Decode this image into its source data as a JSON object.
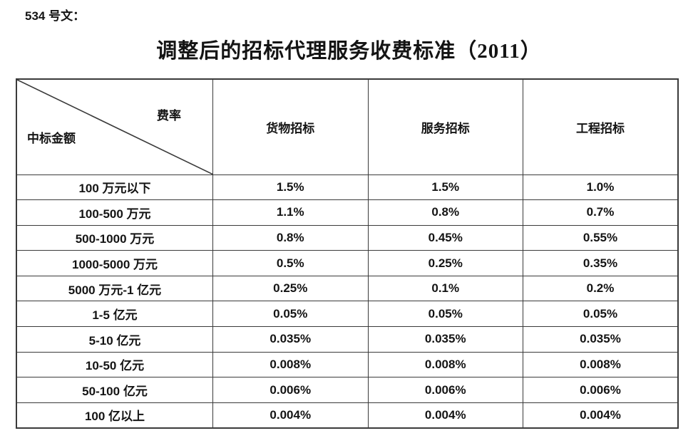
{
  "document": {
    "doc_label": "534 号文：",
    "title": "调整后的招标代理服务收费标准（2011）"
  },
  "table": {
    "corner": {
      "top_right": "费率",
      "bottom_left": "中标金额"
    },
    "columns": [
      "货物招标",
      "服务招标",
      "工程招标"
    ],
    "rows": [
      {
        "amount": "100 万元以下",
        "values": [
          "1.5%",
          "1.5%",
          "1.0%"
        ]
      },
      {
        "amount": "100-500 万元",
        "values": [
          "1.1%",
          "0.8%",
          "0.7%"
        ]
      },
      {
        "amount": "500-1000 万元",
        "values": [
          "0.8%",
          "0.45%",
          "0.55%"
        ]
      },
      {
        "amount": "1000-5000 万元",
        "values": [
          "0.5%",
          "0.25%",
          "0.35%"
        ]
      },
      {
        "amount": "5000 万元-1 亿元",
        "values": [
          "0.25%",
          "0.1%",
          "0.2%"
        ]
      },
      {
        "amount": "1-5 亿元",
        "values": [
          "0.05%",
          "0.05%",
          "0.05%"
        ]
      },
      {
        "amount": "5-10 亿元",
        "values": [
          "0.035%",
          "0.035%",
          "0.035%"
        ]
      },
      {
        "amount": "10-50 亿元",
        "values": [
          "0.008%",
          "0.008%",
          "0.008%"
        ]
      },
      {
        "amount": "50-100 亿元",
        "values": [
          "0.006%",
          "0.006%",
          "0.006%"
        ]
      },
      {
        "amount": "100 亿以上",
        "values": [
          "0.004%",
          "0.004%",
          "0.004%"
        ]
      }
    ],
    "line_color": "#3a3a3a"
  }
}
